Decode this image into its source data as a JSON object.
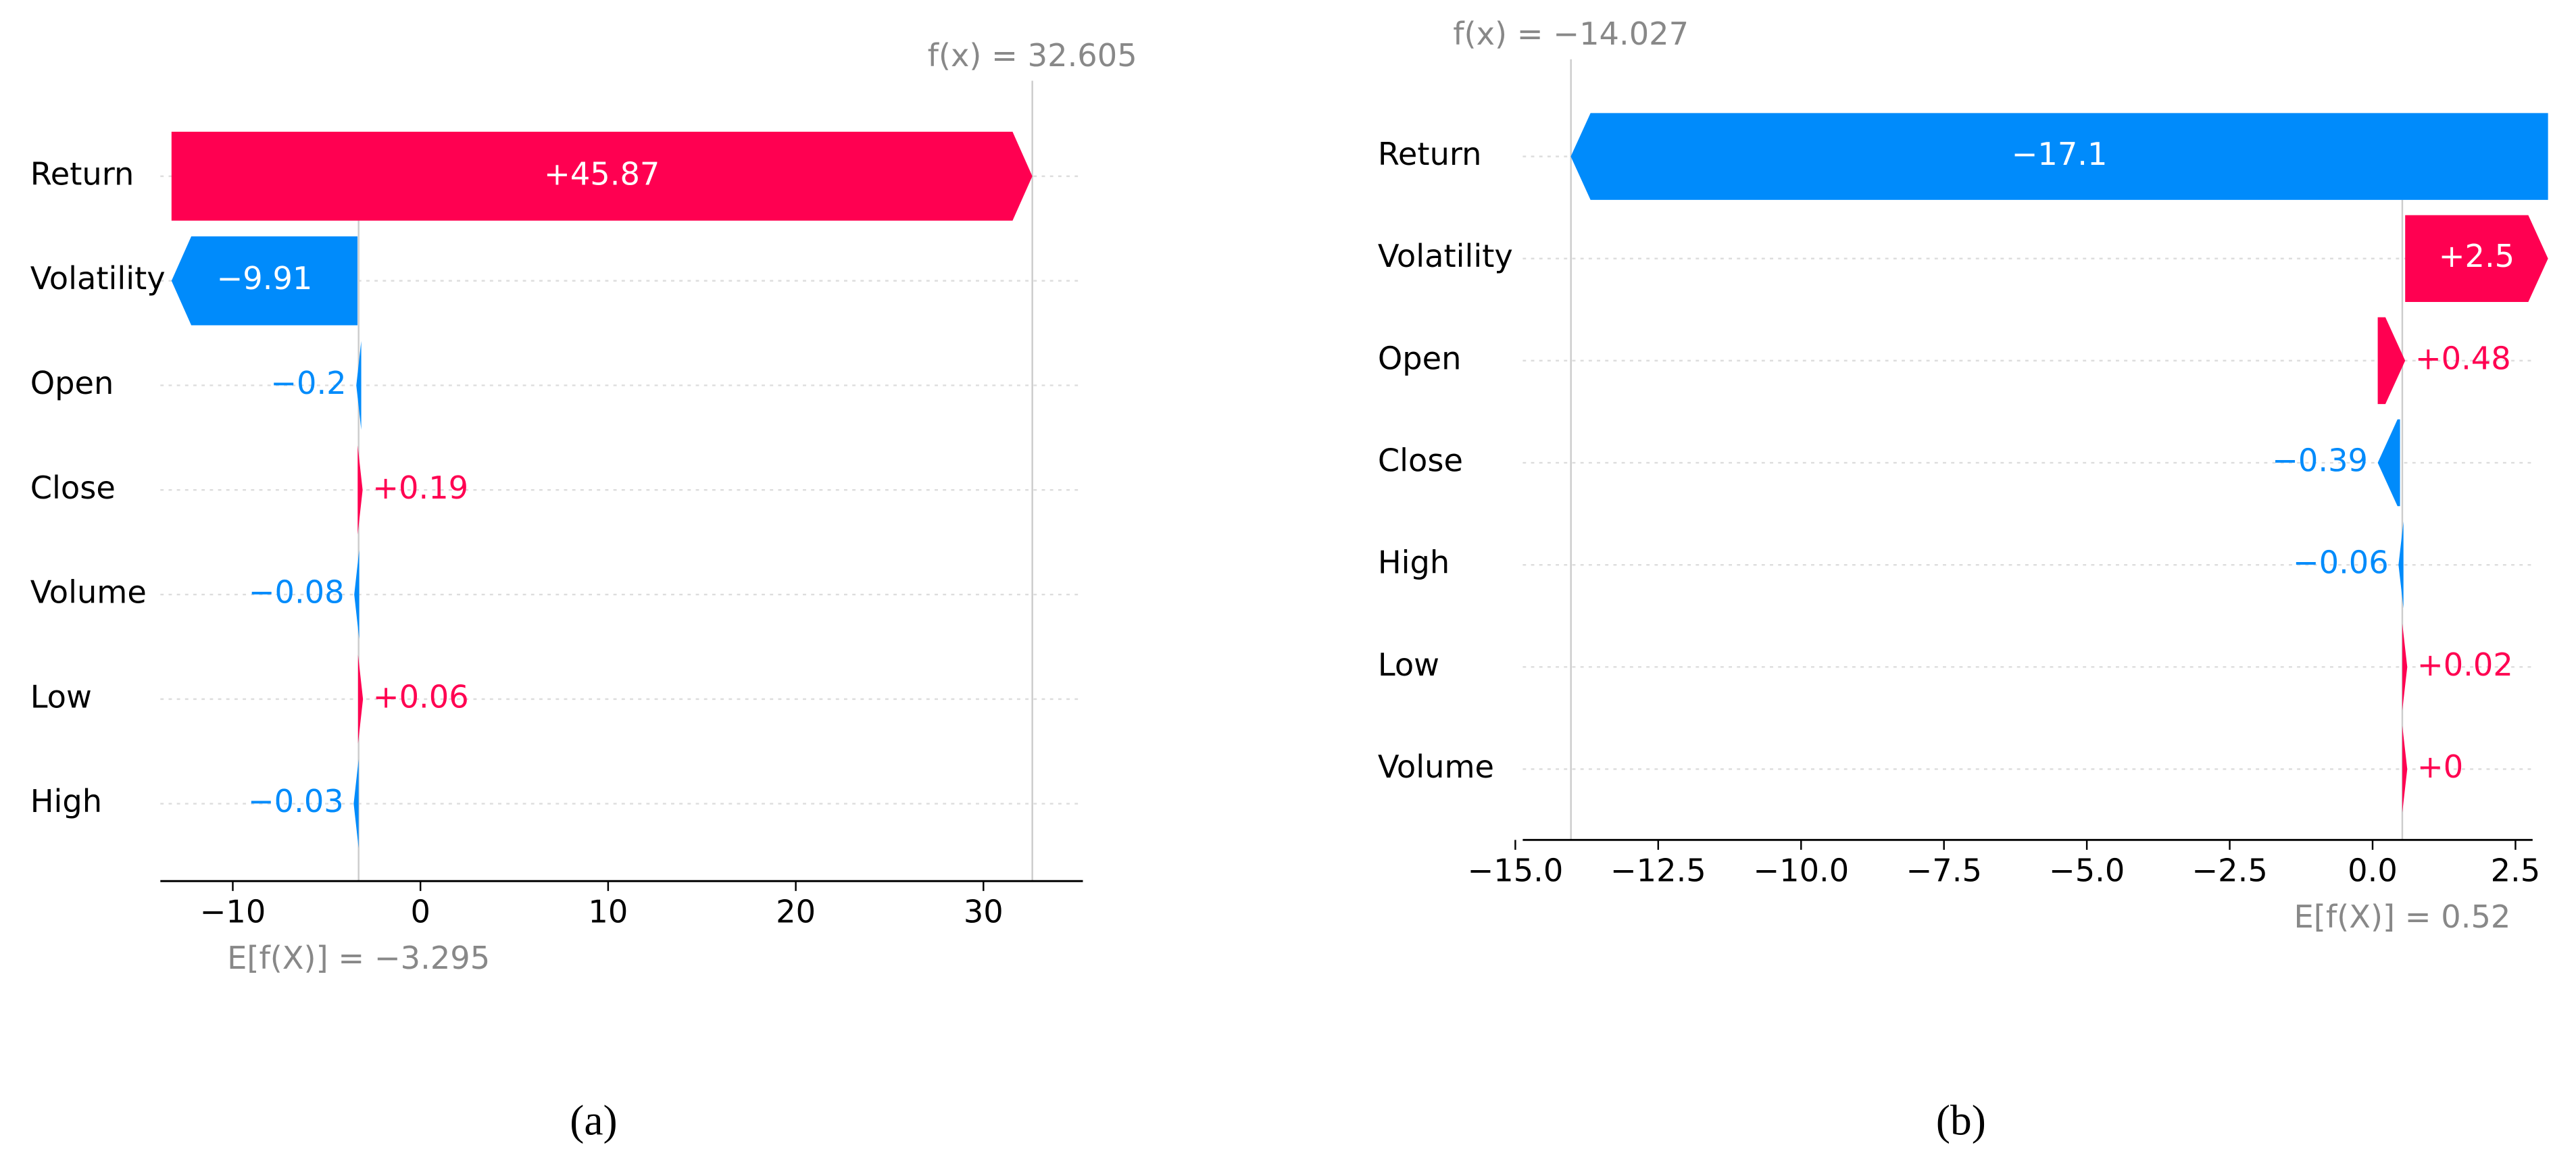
{
  "chart_data": [
    {
      "type": "waterfall",
      "caption": "(a)",
      "categories": [
        "Return",
        "Volatility",
        "Open",
        "Close",
        "Volume",
        "Low",
        "High"
      ],
      "values": [
        45.87,
        -9.91,
        -0.2,
        0.19,
        -0.08,
        0.06,
        -0.03
      ],
      "value_labels": [
        "+45.87",
        "−9.91",
        "−0.2",
        "+0.19",
        "−0.08",
        "+0.06",
        "−0.03"
      ],
      "base": {
        "value": -3.295,
        "label": "E[f(X)] = −3.295"
      },
      "fx": {
        "value": 32.605,
        "label": "f(x) = 32.605"
      },
      "positive_color": "#ff0051",
      "negative_color": "#008bfb",
      "xlim": [
        -13.86,
        35.3
      ],
      "xticks": [
        {
          "value": -10,
          "label": "−10"
        },
        0,
        10,
        20,
        30
      ],
      "grid": true
    },
    {
      "type": "waterfall",
      "caption": "(b)",
      "categories": [
        "Return",
        "Volatility",
        "Open",
        "Close",
        "High",
        "Low",
        "Volume"
      ],
      "values": [
        -17.1,
        2.5,
        0.48,
        -0.39,
        -0.06,
        0.02,
        0
      ],
      "value_labels": [
        "−17.1",
        "+2.5",
        "+0.48",
        "−0.39",
        "−0.06",
        "+0.02",
        "+0"
      ],
      "base": {
        "value": 0.52,
        "label": "E[f(X)] = 0.52"
      },
      "fx": {
        "value": -14.027,
        "label": "f(x) = −14.027"
      },
      "positive_color": "#ff0051",
      "negative_color": "#008bfb",
      "xlim": [
        -14.87,
        2.8
      ],
      "xticks": [
        {
          "value": -15,
          "label": "−15.0"
        },
        {
          "value": -12.5,
          "label": "−12.5"
        },
        {
          "value": -10,
          "label": "−10.0"
        },
        {
          "value": -7.5,
          "label": "−7.5"
        },
        {
          "value": -5,
          "label": "−5.0"
        },
        {
          "value": -2.5,
          "label": "−2.5"
        },
        {
          "value": 0,
          "label": "0.0"
        },
        {
          "value": 2.5,
          "label": "2.5"
        }
      ],
      "grid": true
    }
  ]
}
